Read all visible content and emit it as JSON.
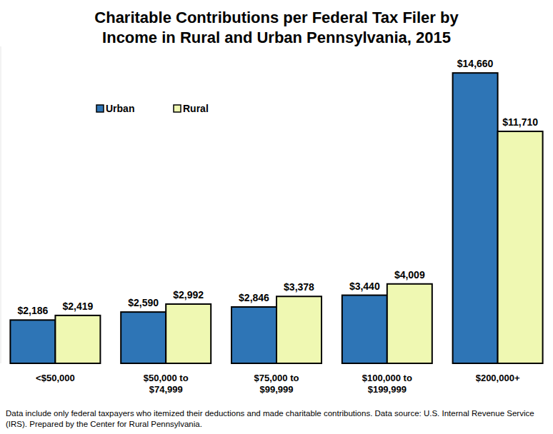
{
  "chart_data": {
    "type": "bar",
    "title": "Charitable Contributions per Federal Tax Filer by Income in Rural and Urban Pennsylvania, 2015",
    "annotations": [
      "Data include only federal taxpayers who itemized their deductions and made charitable contributions. Data source: U.S. Internal Revenue Service (IRS). Prepared by the Center for Rural Pennsylvania."
    ],
    "categories": [
      "<$50,000",
      "$50,000 to $74,999",
      "$75,000 to $99,999",
      "$100,000 to $199,999",
      "$200,000+"
    ],
    "series": [
      {
        "name": "Urban",
        "color": "#2e75b6",
        "values": [
          2186,
          2590,
          2846,
          3440,
          14660
        ],
        "value_labels": [
          "$2,186",
          "$2,590",
          "$2,846",
          "$3,440",
          "$14,660"
        ]
      },
      {
        "name": "Rural",
        "color": "#eff8b2",
        "values": [
          2419,
          2992,
          3378,
          4009,
          11710
        ],
        "value_labels": [
          "$2,419",
          "$2,992",
          "$3,378",
          "$4,009",
          "$11,710"
        ]
      }
    ],
    "ylim": [
      0,
      16000
    ],
    "tick_labels": false,
    "grid": false,
    "legend": "upper left",
    "data_labels": true
  }
}
